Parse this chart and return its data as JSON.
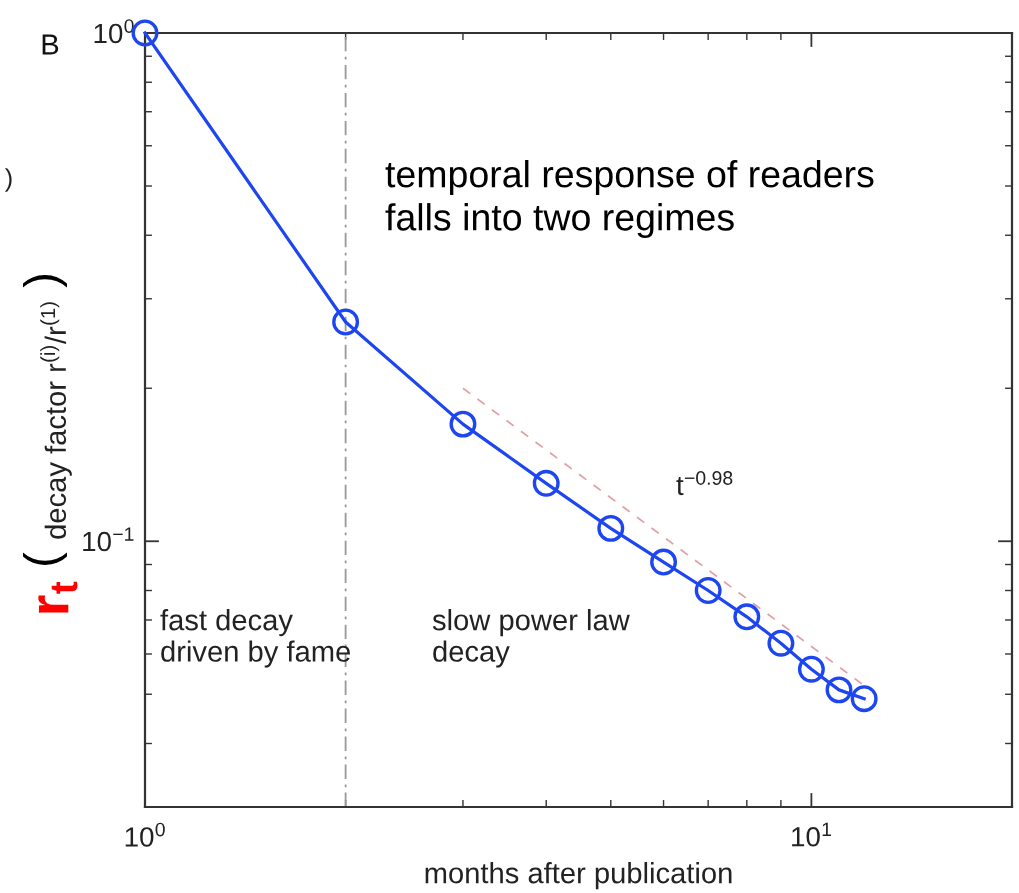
{
  "chart_data": {
    "type": "line",
    "xlabel": "months after publication",
    "ylabel": "decay factor r$^{(i)}$/r$^{(1)}$",
    "annotations": [
      "B",
      "temporal response of readers\nfalls into two regimes",
      "t$^{−0.98}$",
      "fast decay\ndriven by fame",
      "slow power law\ndecay",
      "r$_{t}$",
      "(",
      ")",
      ")"
    ],
    "log": "xy",
    "xlim": [
      1,
      20
    ],
    "ylim": [
      0.03,
      1
    ],
    "xticks": [
      {
        "value": 1,
        "label": "10$^{0}$"
      },
      {
        "value": 10,
        "label": "10$^{1}$"
      }
    ],
    "yticks": [
      {
        "value": 0.1,
        "label": "10$^{−1}$"
      },
      {
        "value": 1,
        "label": "10$^{0}$"
      }
    ],
    "series": [
      {
        "x": [
          1,
          2,
          3,
          4,
          5,
          6,
          7,
          8,
          9,
          10,
          11,
          12
        ],
        "values": [
          1,
          0.27,
          0.17,
          0.13,
          0.106,
          0.091,
          0.08,
          0.071,
          0.063,
          0.056,
          0.051,
          0.049
        ],
        "color": "#1e46f0",
        "marker": "circle",
        "line_style": "solid"
      },
      {
        "type": "line",
        "x": [
          3,
          12
        ],
        "values": [
          0.2,
          0.052
        ],
        "color": "#e0a0a8",
        "marker": "none",
        "line_style": "dashed"
      }
    ],
    "ref_lines": [
      {
        "axis": "x",
        "value": 2,
        "color": "#999999",
        "line_style": "dashdot"
      }
    ]
  }
}
